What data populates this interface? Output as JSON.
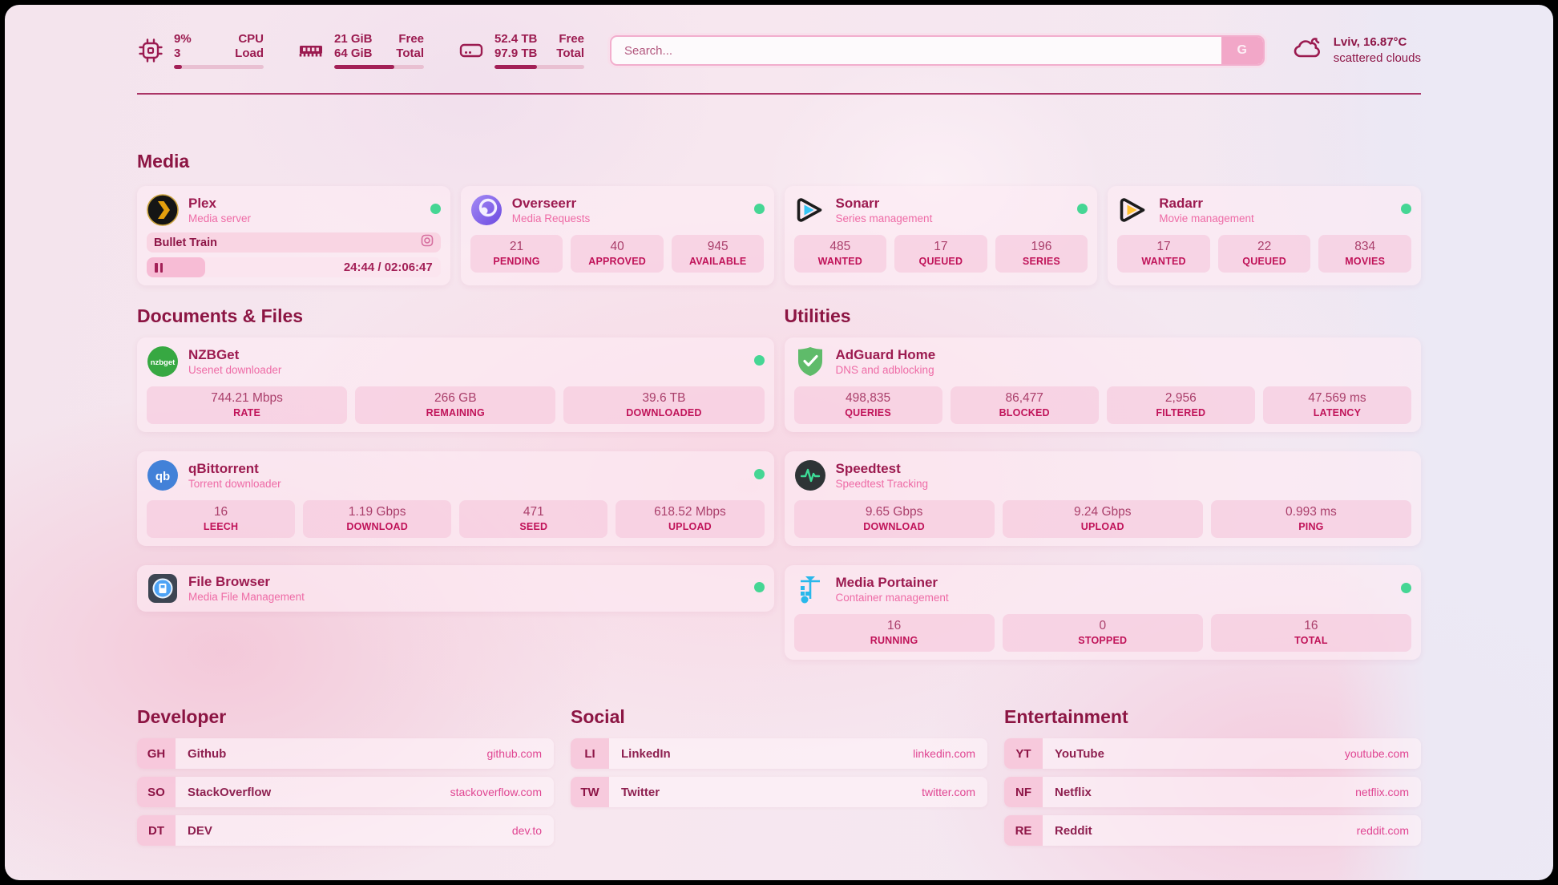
{
  "topbar": {
    "cpu": {
      "value_top": "9%",
      "label_top": "CPU",
      "value_bottom": "3",
      "label_bottom": "Load",
      "progress_pct": 9
    },
    "ram": {
      "value_top": "21 GiB",
      "label_top": "Free",
      "value_bottom": "64 GiB",
      "label_bottom": "Total",
      "progress_pct": 67
    },
    "disk": {
      "value_top": "52.4 TB",
      "label_top": "Free",
      "value_bottom": "97.9 TB",
      "label_bottom": "Total",
      "progress_pct": 47
    },
    "search": {
      "placeholder": "Search...",
      "button_label": "G"
    },
    "weather": {
      "location": "Lviv, 16.87°C",
      "condition": "scattered clouds"
    }
  },
  "sections": {
    "media": {
      "title": "Media",
      "plex": {
        "name": "Plex",
        "subtitle": "Media server",
        "now_playing": {
          "title": "Bullet Train",
          "time": "24:44 / 02:06:47",
          "progress_pct": 20
        }
      },
      "overseerr": {
        "name": "Overseerr",
        "subtitle": "Media Requests",
        "stats": [
          {
            "value": "21",
            "label": "PENDING"
          },
          {
            "value": "40",
            "label": "APPROVED"
          },
          {
            "value": "945",
            "label": "AVAILABLE"
          }
        ]
      },
      "sonarr": {
        "name": "Sonarr",
        "subtitle": "Series management",
        "stats": [
          {
            "value": "485",
            "label": "WANTED"
          },
          {
            "value": "17",
            "label": "QUEUED"
          },
          {
            "value": "196",
            "label": "SERIES"
          }
        ]
      },
      "radarr": {
        "name": "Radarr",
        "subtitle": "Movie management",
        "stats": [
          {
            "value": "17",
            "label": "WANTED"
          },
          {
            "value": "22",
            "label": "QUEUED"
          },
          {
            "value": "834",
            "label": "MOVIES"
          }
        ]
      }
    },
    "documents": {
      "title": "Documents & Files",
      "nzbget": {
        "name": "NZBGet",
        "subtitle": "Usenet downloader",
        "stats": [
          {
            "value": "744.21 Mbps",
            "label": "RATE"
          },
          {
            "value": "266 GB",
            "label": "REMAINING"
          },
          {
            "value": "39.6 TB",
            "label": "DOWNLOADED"
          }
        ]
      },
      "qbittorrent": {
        "name": "qBittorrent",
        "subtitle": "Torrent downloader",
        "stats": [
          {
            "value": "16",
            "label": "LEECH"
          },
          {
            "value": "1.19 Gbps",
            "label": "DOWNLOAD"
          },
          {
            "value": "471",
            "label": "SEED"
          },
          {
            "value": "618.52 Mbps",
            "label": "UPLOAD"
          }
        ]
      },
      "filebrowser": {
        "name": "File Browser",
        "subtitle": "Media File Management"
      }
    },
    "utilities": {
      "title": "Utilities",
      "adguard": {
        "name": "AdGuard Home",
        "subtitle": "DNS and adblocking",
        "stats": [
          {
            "value": "498,835",
            "label": "QUERIES"
          },
          {
            "value": "86,477",
            "label": "BLOCKED"
          },
          {
            "value": "2,956",
            "label": "FILTERED"
          },
          {
            "value": "47.569 ms",
            "label": "LATENCY"
          }
        ]
      },
      "speedtest": {
        "name": "Speedtest",
        "subtitle": "Speedtest Tracking",
        "stats": [
          {
            "value": "9.65 Gbps",
            "label": "DOWNLOAD"
          },
          {
            "value": "9.24 Gbps",
            "label": "UPLOAD"
          },
          {
            "value": "0.993 ms",
            "label": "PING"
          }
        ]
      },
      "portainer": {
        "name": "Media Portainer",
        "subtitle": "Container management",
        "stats": [
          {
            "value": "16",
            "label": "RUNNING"
          },
          {
            "value": "0",
            "label": "STOPPED"
          },
          {
            "value": "16",
            "label": "TOTAL"
          }
        ]
      }
    },
    "developer": {
      "title": "Developer",
      "links": [
        {
          "abbr": "GH",
          "name": "Github",
          "url": "github.com"
        },
        {
          "abbr": "SO",
          "name": "StackOverflow",
          "url": "stackoverflow.com"
        },
        {
          "abbr": "DT",
          "name": "DEV",
          "url": "dev.to"
        }
      ]
    },
    "social": {
      "title": "Social",
      "links": [
        {
          "abbr": "LI",
          "name": "LinkedIn",
          "url": "linkedin.com"
        },
        {
          "abbr": "TW",
          "name": "Twitter",
          "url": "twitter.com"
        }
      ]
    },
    "entertainment": {
      "title": "Entertainment",
      "links": [
        {
          "abbr": "YT",
          "name": "YouTube",
          "url": "youtube.com"
        },
        {
          "abbr": "NF",
          "name": "Netflix",
          "url": "netflix.com"
        },
        {
          "abbr": "RE",
          "name": "Reddit",
          "url": "reddit.com"
        }
      ]
    }
  },
  "colors": {
    "accent": "#9b1b50",
    "section_title": "#8c1543",
    "subtitle_pink": "#ee6ba6",
    "stat_label": "#c01359",
    "url_pink": "#e04592",
    "status_online": "#45d694",
    "progress_fill": "#a32057"
  }
}
